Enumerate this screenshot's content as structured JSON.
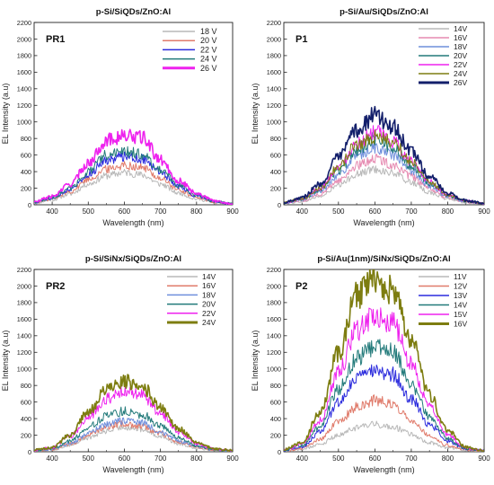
{
  "figure": {
    "colors": {
      "light_gray": "#b8b8b8",
      "salmon": "#e07b6b",
      "blue": "#2b2bdd",
      "teal": "#227a7a",
      "magenta": "#ee22ee",
      "olive": "#7d7d10",
      "navy": "#131f6b",
      "light_blue": "#6f8fdc",
      "pink": "#e68ab1"
    }
  },
  "chart_data": [
    {
      "type": "line",
      "title": "p-Si/SiQDs/ZnO:Al",
      "panel_label": "PR1",
      "xlabel": "Wavelength (nm)",
      "ylabel": "EL Intensity (a.u)",
      "xlim": [
        350,
        900
      ],
      "ylim": [
        0,
        2200
      ],
      "xticks": [
        400,
        500,
        600,
        700,
        800,
        900
      ],
      "yticks": [
        0,
        200,
        400,
        600,
        800,
        1000,
        1200,
        1400,
        1600,
        1800,
        2000,
        2200
      ],
      "grid": false,
      "legend_position": "top-right",
      "x": [
        350,
        400,
        450,
        500,
        550,
        600,
        650,
        700,
        750,
        800,
        850,
        900
      ],
      "series": [
        {
          "name": "18 V",
          "color": "#b8b8b8",
          "values": [
            20,
            60,
            130,
            250,
            350,
            390,
            360,
            250,
            140,
            70,
            25,
            10
          ]
        },
        {
          "name": "20 V",
          "color": "#e07b6b",
          "values": [
            25,
            70,
            160,
            310,
            430,
            480,
            450,
            320,
            180,
            90,
            30,
            10
          ]
        },
        {
          "name": "22 V",
          "color": "#2b2bdd",
          "values": [
            30,
            80,
            190,
            370,
            540,
            590,
            560,
            390,
            220,
            110,
            35,
            10
          ]
        },
        {
          "name": "24 V",
          "color": "#227a7a",
          "values": [
            30,
            85,
            200,
            400,
            600,
            640,
            610,
            420,
            240,
            120,
            40,
            12
          ]
        },
        {
          "name": "26 V",
          "color": "#ee22ee",
          "values": [
            35,
            100,
            250,
            500,
            780,
            830,
            810,
            540,
            290,
            140,
            45,
            12
          ]
        }
      ]
    },
    {
      "type": "line",
      "title": "p-Si/Au/SiQDs/ZnO:Al",
      "panel_label": "P1",
      "xlabel": "Wavelength (nm)",
      "ylabel": "EL Intensity (a.u)",
      "xlim": [
        350,
        900
      ],
      "ylim": [
        0,
        2200
      ],
      "xticks": [
        400,
        500,
        600,
        700,
        800,
        900
      ],
      "yticks": [
        0,
        200,
        400,
        600,
        800,
        1000,
        1200,
        1400,
        1600,
        1800,
        2000,
        2200
      ],
      "grid": false,
      "legend_position": "top-right",
      "x": [
        350,
        400,
        450,
        500,
        550,
        600,
        650,
        700,
        750,
        800,
        850,
        900
      ],
      "series": [
        {
          "name": "14V",
          "color": "#b8b8b8",
          "values": [
            15,
            40,
            100,
            230,
            370,
            430,
            380,
            270,
            150,
            70,
            30,
            10
          ]
        },
        {
          "name": "16V",
          "color": "#e68ab1",
          "values": [
            20,
            50,
            130,
            290,
            470,
            560,
            480,
            340,
            190,
            85,
            35,
            12
          ]
        },
        {
          "name": "18V",
          "color": "#6f8fdc",
          "values": [
            20,
            60,
            160,
            360,
            580,
            690,
            600,
            410,
            230,
            100,
            40,
            12
          ]
        },
        {
          "name": "20V",
          "color": "#227a7a",
          "values": [
            25,
            70,
            180,
            410,
            660,
            800,
            690,
            470,
            260,
            110,
            45,
            14
          ]
        },
        {
          "name": "22V",
          "color": "#ee22ee",
          "values": [
            25,
            75,
            200,
            460,
            740,
            880,
            760,
            520,
            280,
            120,
            45,
            14
          ]
        },
        {
          "name": "24V",
          "color": "#7d7d10",
          "values": [
            25,
            75,
            200,
            460,
            730,
            820,
            760,
            530,
            280,
            120,
            45,
            14
          ]
        },
        {
          "name": "26V",
          "color": "#131f6b",
          "values": [
            30,
            90,
            250,
            570,
            900,
            1080,
            940,
            640,
            340,
            140,
            50,
            15
          ]
        }
      ]
    },
    {
      "type": "line",
      "title": "p-Si/SiNx/SiQDs/ZnO:Al",
      "panel_label": "PR2",
      "xlabel": "Wavelength (nm)",
      "ylabel": "EL Intensity (a.u)",
      "xlim": [
        350,
        900
      ],
      "ylim": [
        0,
        2200
      ],
      "xticks": [
        400,
        500,
        600,
        700,
        800,
        900
      ],
      "yticks": [
        0,
        200,
        400,
        600,
        800,
        1000,
        1200,
        1400,
        1600,
        1800,
        2000,
        2200
      ],
      "grid": false,
      "legend_position": "top-right",
      "x": [
        350,
        400,
        450,
        500,
        550,
        600,
        650,
        700,
        750,
        800,
        850,
        900
      ],
      "series": [
        {
          "name": "14V",
          "color": "#b8b8b8",
          "values": [
            10,
            25,
            80,
            170,
            250,
            300,
            270,
            190,
            100,
            45,
            20,
            10
          ]
        },
        {
          "name": "16V",
          "color": "#e07b6b",
          "values": [
            12,
            30,
            95,
            200,
            300,
            340,
            310,
            220,
            120,
            55,
            22,
            10
          ]
        },
        {
          "name": "18V",
          "color": "#6f8fdc",
          "values": [
            12,
            32,
            100,
            220,
            330,
            380,
            350,
            240,
            130,
            60,
            25,
            10
          ]
        },
        {
          "name": "20V",
          "color": "#227a7a",
          "values": [
            15,
            40,
            130,
            300,
            430,
            490,
            450,
            310,
            170,
            75,
            28,
            12
          ]
        },
        {
          "name": "22V",
          "color": "#ee22ee",
          "values": [
            18,
            50,
            180,
            420,
            640,
            730,
            680,
            460,
            240,
            100,
            32,
            12
          ]
        },
        {
          "name": "24V",
          "color": "#7d7d10",
          "values": [
            20,
            55,
            200,
            480,
            740,
            850,
            790,
            540,
            280,
            115,
            35,
            14
          ]
        }
      ]
    },
    {
      "type": "line",
      "title": "p-Si/Au(1nm)/SiNx/SiQDs/ZnO:Al",
      "panel_label": "P2",
      "xlabel": "Wavelength (nm)",
      "ylabel": "EL Intensity (a.u)",
      "xlim": [
        350,
        900
      ],
      "ylim": [
        0,
        2200
      ],
      "xticks": [
        400,
        500,
        600,
        700,
        800,
        900
      ],
      "yticks": [
        0,
        200,
        400,
        600,
        800,
        1000,
        1200,
        1400,
        1600,
        1800,
        2000,
        2200
      ],
      "grid": false,
      "legend_position": "top-right",
      "x": [
        350,
        400,
        450,
        500,
        550,
        600,
        650,
        700,
        750,
        800,
        850,
        900
      ],
      "series": [
        {
          "name": "11V",
          "color": "#b8b8b8",
          "values": [
            10,
            30,
            90,
            200,
            290,
            330,
            300,
            210,
            110,
            50,
            20,
            8
          ]
        },
        {
          "name": "12V",
          "color": "#e07b6b",
          "values": [
            12,
            40,
            150,
            360,
            540,
            620,
            570,
            390,
            200,
            80,
            25,
            10
          ]
        },
        {
          "name": "13V",
          "color": "#2b2bdd",
          "values": [
            15,
            60,
            240,
            590,
            880,
            990,
            930,
            640,
            330,
            130,
            35,
            12
          ]
        },
        {
          "name": "14V",
          "color": "#227a7a",
          "values": [
            18,
            75,
            300,
            760,
            1130,
            1280,
            1200,
            820,
            420,
            160,
            40,
            14
          ]
        },
        {
          "name": "15V",
          "color": "#ee22ee",
          "values": [
            20,
            90,
            380,
            960,
            1470,
            1650,
            1550,
            1060,
            540,
            200,
            45,
            15
          ]
        },
        {
          "name": "16V",
          "color": "#7d7d10",
          "values": [
            25,
            110,
            480,
            1200,
            1870,
            2080,
            1960,
            1340,
            680,
            250,
            55,
            18
          ]
        }
      ]
    }
  ]
}
